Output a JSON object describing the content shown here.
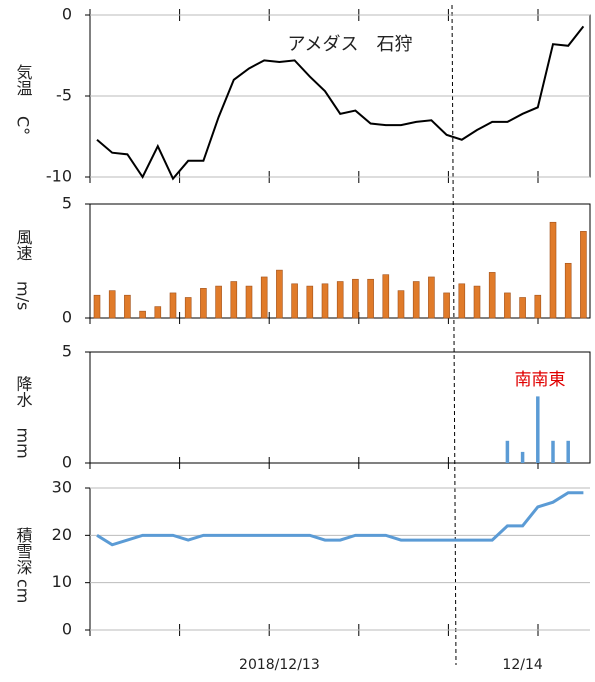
{
  "chart_data": [
    {
      "type": "line",
      "title": "アメダス　石狩",
      "ylabel": "気温",
      "yunit": "C°",
      "color": "#000000",
      "values": [
        -7.7,
        -8.5,
        -8.6,
        -10,
        -8.1,
        -10.1,
        -9,
        -9,
        -6.3,
        -4,
        -3.3,
        -2.8,
        -2.9,
        -2.8,
        -3.8,
        -4.7,
        -6.1,
        -5.9,
        -6.7,
        -6.8,
        -6.8,
        -6.6,
        -6.5,
        -7.4,
        -7.7,
        -7.1,
        -6.6,
        -6.6,
        -6.1,
        -5.7,
        -1.8,
        -1.9,
        -0.7
      ],
      "ylim": [
        -10,
        0
      ],
      "yticks": [
        0,
        -5,
        -10
      ],
      "grid": true
    },
    {
      "type": "bar",
      "ylabel": "風速",
      "yunit": "m/s",
      "color": "#e07b2a",
      "values": [
        1.0,
        1.2,
        1.0,
        0.3,
        0.5,
        1.1,
        0.9,
        1.3,
        1.4,
        1.6,
        1.4,
        1.8,
        2.1,
        1.5,
        1.4,
        1.5,
        1.6,
        1.7,
        1.7,
        1.9,
        1.2,
        1.6,
        1.8,
        1.1,
        1.5,
        1.4,
        2.0,
        1.1,
        0.9,
        1.0,
        4.2,
        2.4,
        3.8
      ],
      "ylim": [
        0,
        5
      ],
      "yticks": [
        0,
        5
      ],
      "grid": false
    },
    {
      "type": "bar",
      "ylabel": "降水",
      "yunit": "mm",
      "color": "#5b9bd5",
      "annotation": "南南東",
      "values": [
        0,
        0,
        0,
        0,
        0,
        0,
        0,
        0,
        0,
        0,
        0,
        0,
        0,
        0,
        0,
        0,
        0,
        0,
        0,
        0,
        0,
        0,
        0,
        0,
        0,
        0,
        0,
        1.0,
        0.5,
        3.0,
        1.0,
        1.0,
        0
      ],
      "ylim": [
        0,
        5
      ],
      "yticks": [
        0,
        5
      ],
      "grid": false
    },
    {
      "type": "line",
      "ylabel": "積雪深",
      "yunit": "cm",
      "color": "#5b9bd5",
      "categories": [
        null,
        null,
        null,
        null,
        null,
        null,
        null,
        null,
        null,
        null,
        null,
        null,
        "2018/12/13",
        null,
        null,
        null,
        null,
        null,
        null,
        null,
        null,
        null,
        null,
        null,
        null,
        null,
        null,
        null,
        "12/14",
        null,
        null,
        null,
        null
      ],
      "values": [
        20,
        18,
        19,
        20,
        20,
        20,
        19,
        20,
        20,
        20,
        20,
        20,
        20,
        20,
        20,
        19,
        19,
        20,
        20,
        20,
        19,
        19,
        19,
        19,
        19,
        19,
        19,
        22,
        22,
        26,
        27,
        29,
        29
      ],
      "ylim": [
        0,
        30
      ],
      "yticks": [
        0,
        10,
        20,
        30
      ],
      "grid": true
    }
  ]
}
